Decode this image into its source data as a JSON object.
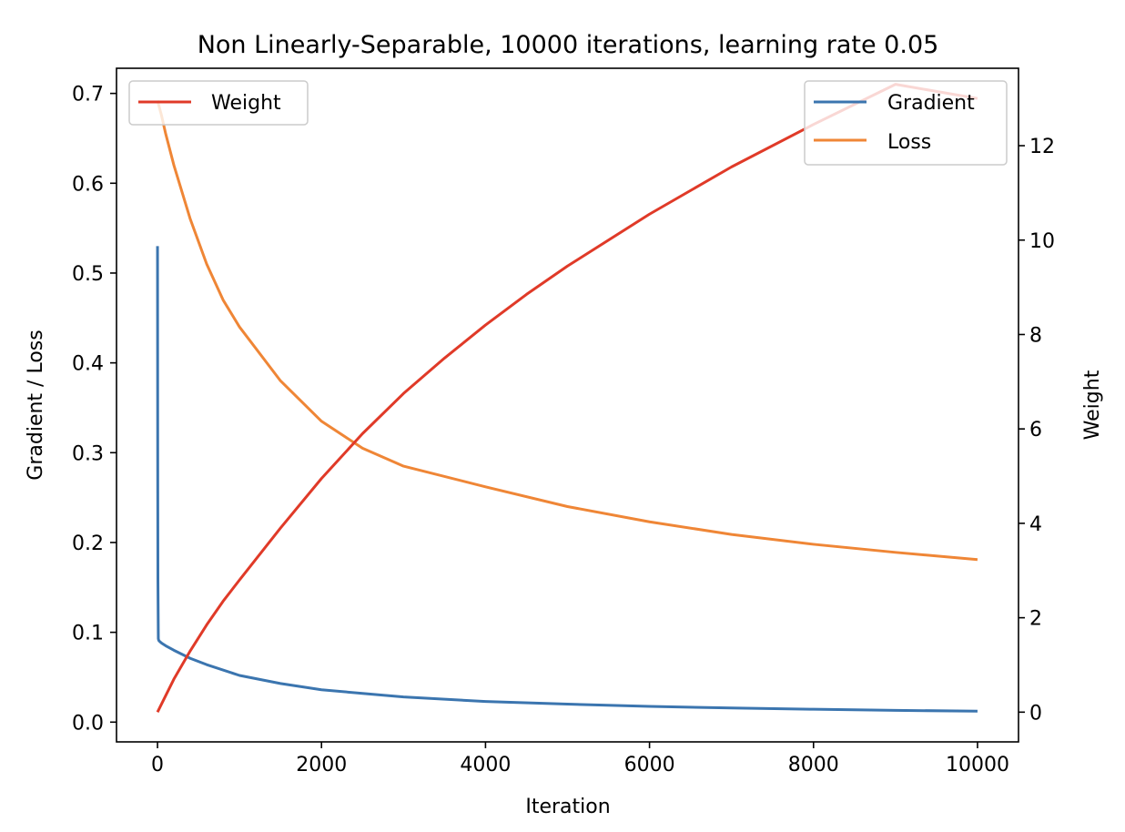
{
  "chart_data": {
    "type": "line",
    "title": "Non Linearly-Separable, 10000 iterations, learning rate 0.05",
    "xlabel": "Iteration",
    "ylabel_left": "Gradient / Loss",
    "ylabel_right": "Weight",
    "xlim": [
      -500,
      10500
    ],
    "ylim_left": [
      -0.022,
      0.728
    ],
    "ylim_right": [
      -0.63,
      13.64
    ],
    "x_ticks": [
      0,
      2000,
      4000,
      6000,
      8000,
      10000
    ],
    "x_tick_labels": [
      "0",
      "2000",
      "4000",
      "6000",
      "8000",
      "10000"
    ],
    "y_left_ticks": [
      0.0,
      0.1,
      0.2,
      0.3,
      0.4,
      0.5,
      0.6,
      0.7
    ],
    "y_left_tick_labels": [
      "0.0",
      "0.1",
      "0.2",
      "0.3",
      "0.4",
      "0.5",
      "0.6",
      "0.7"
    ],
    "y_right_ticks": [
      0,
      2,
      4,
      6,
      8,
      10,
      12
    ],
    "y_right_tick_labels": [
      "0",
      "2",
      "4",
      "6",
      "8",
      "10",
      "12"
    ],
    "grid": false,
    "legend_left": {
      "placement": "upper-left",
      "entries": [
        "Weight"
      ]
    },
    "legend_right": {
      "placement": "upper-right",
      "entries": [
        "Gradient",
        "Loss"
      ]
    },
    "series": [
      {
        "name": "Gradient",
        "axis": "left",
        "color": "#3b75af",
        "x": [
          0,
          1,
          2,
          3,
          5,
          10,
          15,
          20,
          30,
          50,
          100,
          200,
          400,
          600,
          1000,
          1500,
          2000,
          2500,
          3000,
          4000,
          5000,
          6000,
          7000,
          8000,
          9000,
          10000
        ],
        "y": [
          0.53,
          0.44,
          0.34,
          0.26,
          0.16,
          0.093,
          0.091,
          0.0905,
          0.0895,
          0.088,
          0.085,
          0.08,
          0.071,
          0.064,
          0.052,
          0.043,
          0.036,
          0.032,
          0.028,
          0.023,
          0.02,
          0.0175,
          0.0157,
          0.0143,
          0.0131,
          0.0122
        ]
      },
      {
        "name": "Loss",
        "axis": "left",
        "color": "#ef8636",
        "x": [
          0,
          50,
          100,
          200,
          400,
          600,
          800,
          1000,
          1500,
          2000,
          2500,
          3000,
          4000,
          5000,
          6000,
          7000,
          8000,
          9000,
          10000
        ],
        "y": [
          0.692,
          0.675,
          0.655,
          0.62,
          0.56,
          0.51,
          0.47,
          0.44,
          0.38,
          0.335,
          0.305,
          0.285,
          0.262,
          0.24,
          0.223,
          0.209,
          0.198,
          0.189,
          0.181
        ]
      },
      {
        "name": "Weight",
        "axis": "right",
        "color": "#e03a28",
        "x": [
          0,
          100,
          200,
          400,
          600,
          800,
          1000,
          1500,
          2000,
          2500,
          3000,
          3500,
          4000,
          4500,
          5000,
          6000,
          7000,
          8000,
          9000,
          10000
        ],
        "y": [
          0.0,
          0.35,
          0.7,
          1.3,
          1.85,
          2.35,
          2.8,
          3.9,
          4.95,
          5.9,
          6.75,
          7.5,
          8.2,
          8.85,
          9.45,
          10.55,
          11.55,
          12.45,
          13.3,
          13.0
        ]
      }
    ]
  }
}
